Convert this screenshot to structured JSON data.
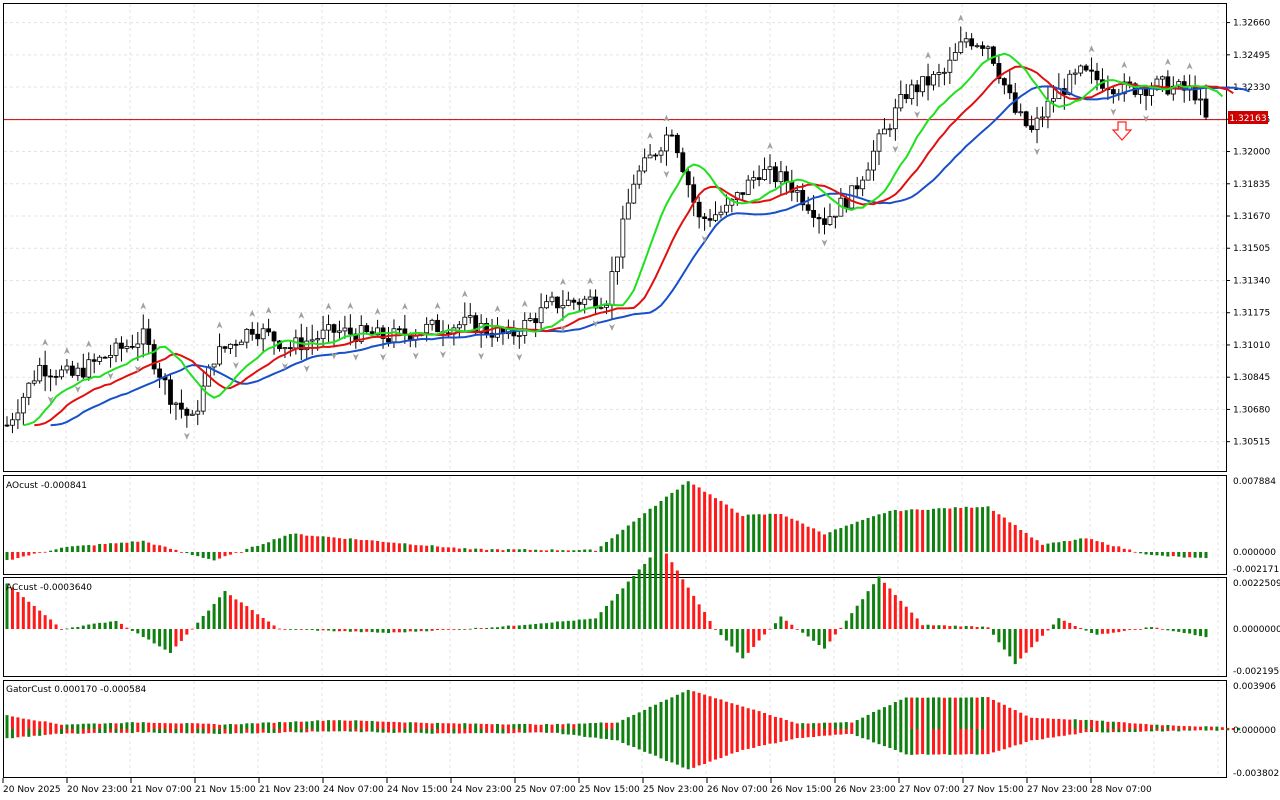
{
  "colors": {
    "background": "#ffffff",
    "grid": "#e3e3e3",
    "bull_body": "#ffffff",
    "bear_body": "#000000",
    "jaw": "#1750c8",
    "teeth": "#e01010",
    "lips": "#20e020",
    "bar_up": "#108010",
    "bar_down": "#ff1a1a",
    "price_line": "#cc0000",
    "fractal": "#a0a0a0"
  },
  "main": {
    "current_price": "1.32163",
    "price_ticks": [
      "1.32660",
      "1.32495",
      "1.32330",
      "1.32165",
      "1.32000",
      "1.31835",
      "1.31670",
      "1.31505",
      "1.31340",
      "1.31175",
      "1.31010",
      "1.30845",
      "1.30680",
      "1.30515"
    ],
    "signal": "down-arrow"
  },
  "ao_panel": {
    "label": "AOcust -0.000841",
    "ticks": [
      "0.007884",
      "0.000000",
      "-0.002171"
    ]
  },
  "ac_panel": {
    "label": "ACcust -0.0003640",
    "ticks": [
      "0.0022509",
      "0.0000000",
      "-0.0021956"
    ]
  },
  "gator_panel": {
    "label": "GatorCust 0.000170 -0.000584",
    "ticks": [
      "0.003906",
      "0.000000",
      "-0.003802"
    ]
  },
  "time_axis": [
    "20 Nov 2025",
    "20 Nov 23:00",
    "21 Nov 07:00",
    "21 Nov 15:00",
    "21 Nov 23:00",
    "24 Nov 07:00",
    "24 Nov 15:00",
    "24 Nov 23:00",
    "25 Nov 07:00",
    "25 Nov 15:00",
    "25 Nov 23:00",
    "26 Nov 07:00",
    "26 Nov 15:00",
    "26 Nov 23:00",
    "27 Nov 07:00",
    "27 Nov 15:00",
    "27 Nov 23:00",
    "28 Nov 07:00"
  ],
  "chart_data": {
    "type": "candlestick",
    "symbol_pair_precision": 5,
    "ylim": [
      1.3037,
      1.3275
    ],
    "anchors": [
      [
        0,
        1.306
      ],
      [
        6,
        1.309
      ],
      [
        12,
        1.3085
      ],
      [
        18,
        1.3095
      ],
      [
        25,
        1.3105
      ],
      [
        30,
        1.3075
      ],
      [
        34,
        1.3062
      ],
      [
        38,
        1.3095
      ],
      [
        45,
        1.311
      ],
      [
        52,
        1.31
      ],
      [
        60,
        1.3108
      ],
      [
        70,
        1.3105
      ],
      [
        78,
        1.311
      ],
      [
        85,
        1.3112
      ],
      [
        92,
        1.3105
      ],
      [
        100,
        1.3122
      ],
      [
        110,
        1.3125
      ],
      [
        115,
        1.3185
      ],
      [
        122,
        1.3212
      ],
      [
        127,
        1.3165
      ],
      [
        132,
        1.317
      ],
      [
        138,
        1.319
      ],
      [
        143,
        1.3185
      ],
      [
        150,
        1.3165
      ],
      [
        155,
        1.3178
      ],
      [
        160,
        1.3205
      ],
      [
        165,
        1.323
      ],
      [
        172,
        1.324
      ],
      [
        176,
        1.3258
      ],
      [
        180,
        1.3255
      ],
      [
        185,
        1.322
      ],
      [
        188,
        1.321
      ],
      [
        192,
        1.3228
      ],
      [
        197,
        1.324
      ],
      [
        205,
        1.3232
      ],
      [
        212,
        1.3234
      ],
      [
        218,
        1.323
      ],
      [
        220,
        1.3216
      ]
    ],
    "ao": {
      "anchors": [
        [
          0,
          -0.001
        ],
        [
          10,
          0.0005
        ],
        [
          25,
          0.0012
        ],
        [
          38,
          -0.001
        ],
        [
          52,
          0.002
        ],
        [
          68,
          0.0012
        ],
        [
          85,
          0.0003
        ],
        [
          108,
          0.0002
        ],
        [
          125,
          0.0078
        ],
        [
          135,
          0.004
        ],
        [
          142,
          0.0042
        ],
        [
          150,
          0.002
        ],
        [
          162,
          0.0045
        ],
        [
          180,
          0.005
        ],
        [
          190,
          0.0008
        ],
        [
          198,
          0.0015
        ],
        [
          210,
          -0.0004
        ],
        [
          220,
          -0.0008
        ]
      ]
    },
    "ac": {
      "anchors": [
        [
          0,
          0.0022
        ],
        [
          10,
          0.0
        ],
        [
          20,
          0.0004
        ],
        [
          30,
          -0.0012
        ],
        [
          40,
          0.0018
        ],
        [
          50,
          0.0
        ],
        [
          70,
          -0.0002
        ],
        [
          90,
          0.0001
        ],
        [
          108,
          0.0005
        ],
        [
          120,
          0.004
        ],
        [
          130,
          0.0
        ],
        [
          135,
          -0.0015
        ],
        [
          142,
          0.0006
        ],
        [
          150,
          -0.001
        ],
        [
          160,
          0.0025
        ],
        [
          168,
          0.0002
        ],
        [
          180,
          0.0001
        ],
        [
          185,
          -0.0018
        ],
        [
          193,
          0.0005
        ],
        [
          200,
          -0.0003
        ],
        [
          210,
          0.0001
        ],
        [
          220,
          -0.0004
        ]
      ]
    },
    "gator_upper": {
      "anchors": [
        [
          0,
          0.0012
        ],
        [
          10,
          0.0004
        ],
        [
          25,
          0.0006
        ],
        [
          40,
          0.0004
        ],
        [
          60,
          0.0008
        ],
        [
          80,
          0.0005
        ],
        [
          100,
          0.0004
        ],
        [
          112,
          0.0006
        ],
        [
          125,
          0.0035
        ],
        [
          135,
          0.002
        ],
        [
          145,
          0.0005
        ],
        [
          155,
          0.0006
        ],
        [
          165,
          0.0028
        ],
        [
          180,
          0.0028
        ],
        [
          188,
          0.001
        ],
        [
          198,
          0.0008
        ],
        [
          210,
          0.0004
        ],
        [
          226,
          0.0001
        ]
      ]
    },
    "gator_lower": {
      "anchors": [
        [
          0,
          -0.0008
        ],
        [
          10,
          -0.0004
        ],
        [
          25,
          -0.0003
        ],
        [
          40,
          -0.0004
        ],
        [
          60,
          -0.0002
        ],
        [
          80,
          -0.0004
        ],
        [
          100,
          -0.0003
        ],
        [
          112,
          -0.001
        ],
        [
          125,
          -0.0035
        ],
        [
          135,
          -0.0018
        ],
        [
          145,
          -0.0008
        ],
        [
          155,
          -0.0004
        ],
        [
          165,
          -0.0022
        ],
        [
          180,
          -0.0022
        ],
        [
          188,
          -0.001
        ],
        [
          198,
          -0.0003
        ],
        [
          210,
          -0.0002
        ],
        [
          226,
          -0.0001
        ]
      ]
    }
  }
}
